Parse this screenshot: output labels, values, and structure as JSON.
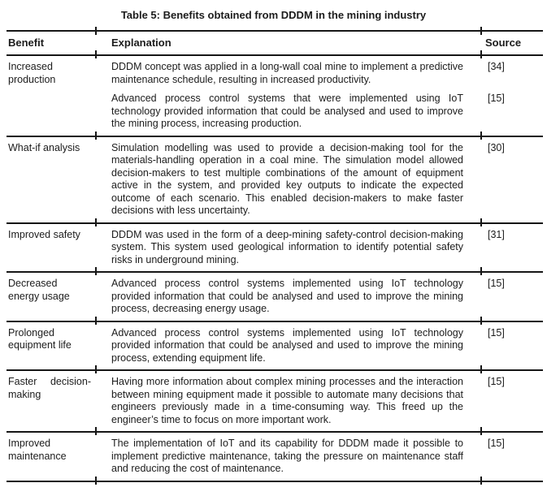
{
  "page": {
    "title": "Table 5: Benefits obtained from DDDM in the mining industry"
  },
  "table": {
    "columns": [
      "Benefit",
      "Explanation",
      "Source"
    ],
    "rows": [
      {
        "benefit": "Increased production",
        "entries": [
          {
            "explanation": "DDDM concept was applied in a long-wall coal mine to implement a predictive maintenance schedule, resulting in increased productivity.",
            "source": "[34]"
          },
          {
            "explanation": "Advanced process control systems that were implemented using IoT technology provided information that could be analysed and used to improve the mining process, increasing production.",
            "source": "[15]"
          }
        ]
      },
      {
        "benefit": "What-if analysis",
        "entries": [
          {
            "explanation": "Simulation modelling was used to provide a decision-making tool for the materials-handling operation in a coal mine. The simulation model allowed decision-makers to test multiple combinations of the amount of equipment active in the system, and provided key outputs to indicate the expected outcome of each scenario. This enabled decision-makers to make faster decisions with less uncertainty.",
            "source": "[30]"
          }
        ]
      },
      {
        "benefit": "Improved safety",
        "entries": [
          {
            "explanation": "DDDM was used in the form of a deep-mining safety-control decision-making system. This system used geological information to identify potential safety risks in underground mining.",
            "source": "[31]"
          }
        ]
      },
      {
        "benefit": "Decreased energy usage",
        "entries": [
          {
            "explanation": "Advanced process control systems implemented using IoT technology provided information that could be analysed and used to improve the mining process, decreasing energy usage.",
            "source": "[15]"
          }
        ]
      },
      {
        "benefit": "Prolonged equipment life",
        "entries": [
          {
            "explanation": "Advanced process control systems implemented using IoT technology provided information that could be analysed and used to improve the mining process, extending equipment life.",
            "source": "[15]"
          }
        ]
      },
      {
        "benefit": "Faster decision-making",
        "entries": [
          {
            "explanation": "Having more information about complex mining processes and the interaction between mining equipment made it possible to automate many decisions that engineers previously made in a time-consuming way. This freed up the engineer’s time to focus on more important work.",
            "source": "[15]"
          }
        ]
      },
      {
        "benefit": "Improved maintenance",
        "entries": [
          {
            "explanation": "The implementation of IoT and its capability for DDDM made it possible to implement predictive maintenance, taking the pressure on maintenance staff and reducing the cost of maintenance.",
            "source": "[15]"
          }
        ]
      }
    ]
  },
  "colors": {
    "text": "#1c1c1c",
    "line": "#161616",
    "background": "#ffffff"
  }
}
